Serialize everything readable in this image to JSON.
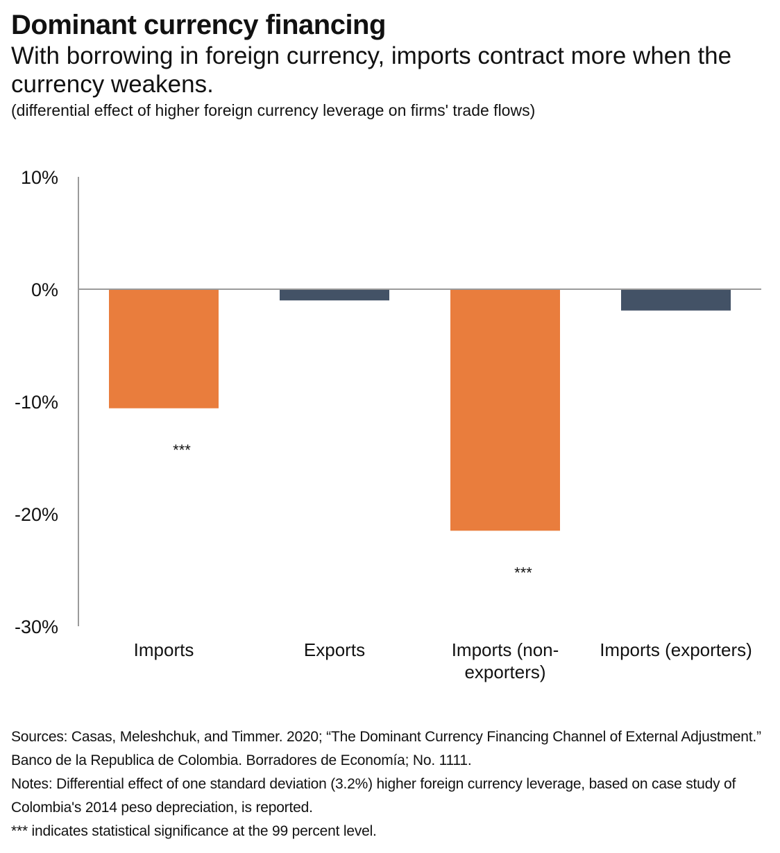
{
  "header": {
    "title": "Dominant currency financing",
    "subtitle": "With borrowing in foreign currency, imports contract more when the currency weakens.",
    "units_note": "(differential effect of higher foreign currency leverage on firms' trade flows)"
  },
  "chart_data": {
    "type": "bar",
    "title": "Dominant currency financing",
    "ylim": [
      -30,
      10
    ],
    "yticks": [
      10,
      0,
      -10,
      -20,
      -30
    ],
    "ytick_labels": [
      "10%",
      "0%",
      "-10%",
      "-20%",
      "-30%"
    ],
    "grid": false,
    "categories": [
      [
        "Imports"
      ],
      [
        "Exports"
      ],
      [
        "Imports (non-",
        "exporters)"
      ],
      [
        "Imports (exporters)"
      ]
    ],
    "values": [
      -10.6,
      -1.0,
      -21.5,
      -1.9
    ],
    "bar_colors": [
      "#e97d3d",
      "#435266",
      "#e97d3d",
      "#435266"
    ],
    "significance": [
      "***",
      "",
      "***",
      ""
    ]
  },
  "colors": {
    "imports": "#e97d3d",
    "exports": "#435266",
    "axis": "#9a9a9a"
  },
  "notes": {
    "sources": "Sources: Casas, Meleshchuk, and Timmer. 2020; “The Dominant Currency Financing Channel of External Adjustment.” Banco de la Republica de Colombia. Borradores de Economía; No. 1111.",
    "notes": "Notes: Differential effect of one standard deviation (3.2%) higher foreign currency leverage, based on case study of Colombia's 2014 peso depreciation, is reported.",
    "significance": "*** indicates statistical significance at the 99 percent level."
  }
}
